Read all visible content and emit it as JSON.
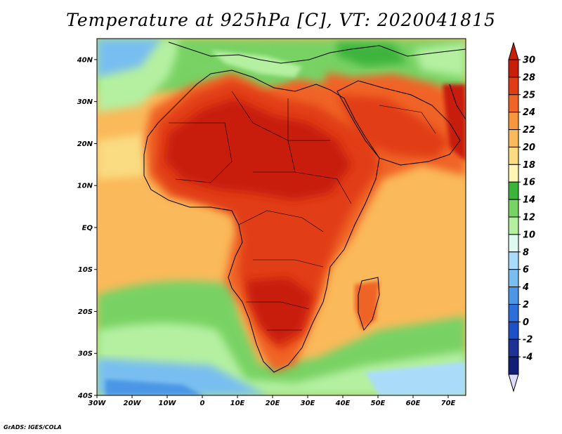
{
  "title": "Temperature at 925hPa [C], VT: 2020041815",
  "credit": "GrADS: IGES/COLA",
  "map": {
    "lon_range": [
      -30,
      75
    ],
    "lat_range": [
      -40,
      45
    ],
    "lon_ticks": [
      {
        "value": -30,
        "label": "30W"
      },
      {
        "value": -20,
        "label": "20W"
      },
      {
        "value": -10,
        "label": "10W"
      },
      {
        "value": 0,
        "label": "0"
      },
      {
        "value": 10,
        "label": "10E"
      },
      {
        "value": 20,
        "label": "20E"
      },
      {
        "value": 30,
        "label": "30E"
      },
      {
        "value": 40,
        "label": "40E"
      },
      {
        "value": 50,
        "label": "50E"
      },
      {
        "value": 60,
        "label": "60E"
      },
      {
        "value": 70,
        "label": "70E"
      }
    ],
    "lat_ticks": [
      {
        "value": 40,
        "label": "40N"
      },
      {
        "value": 30,
        "label": "30N"
      },
      {
        "value": 20,
        "label": "20N"
      },
      {
        "value": 10,
        "label": "10N"
      },
      {
        "value": 0,
        "label": "EQ"
      },
      {
        "value": -10,
        "label": "10S"
      },
      {
        "value": -20,
        "label": "20S"
      },
      {
        "value": -30,
        "label": "30S"
      },
      {
        "value": -40,
        "label": "40S"
      }
    ]
  },
  "colorbar": {
    "levels": [
      {
        "label": "30",
        "color": "#c81e0a"
      },
      {
        "label": "28",
        "color": "#e13c14"
      },
      {
        "label": "25",
        "color": "#f06428"
      },
      {
        "label": "24",
        "color": "#f7963c"
      },
      {
        "label": "22",
        "color": "#fab95a"
      },
      {
        "label": "20",
        "color": "#fadc82"
      },
      {
        "label": "18",
        "color": "#fff5b4"
      },
      {
        "label": "16",
        "color": "#3cb43c"
      },
      {
        "label": "14",
        "color": "#78d264"
      },
      {
        "label": "12",
        "color": "#b4f0a0"
      },
      {
        "label": "10",
        "color": "#dcfaf0"
      },
      {
        "label": "8",
        "color": "#aadcfa"
      },
      {
        "label": "6",
        "color": "#78bef0"
      },
      {
        "label": "4",
        "color": "#4b96e6"
      },
      {
        "label": "2",
        "color": "#2d6edc"
      },
      {
        "label": "0",
        "color": "#1e50c8"
      },
      {
        "label": "-2",
        "color": "#1e3296"
      },
      {
        "label": "-4",
        "color": "#101e78"
      }
    ],
    "over_color": "#c81e0a",
    "under_color": "#dcdcfa"
  }
}
